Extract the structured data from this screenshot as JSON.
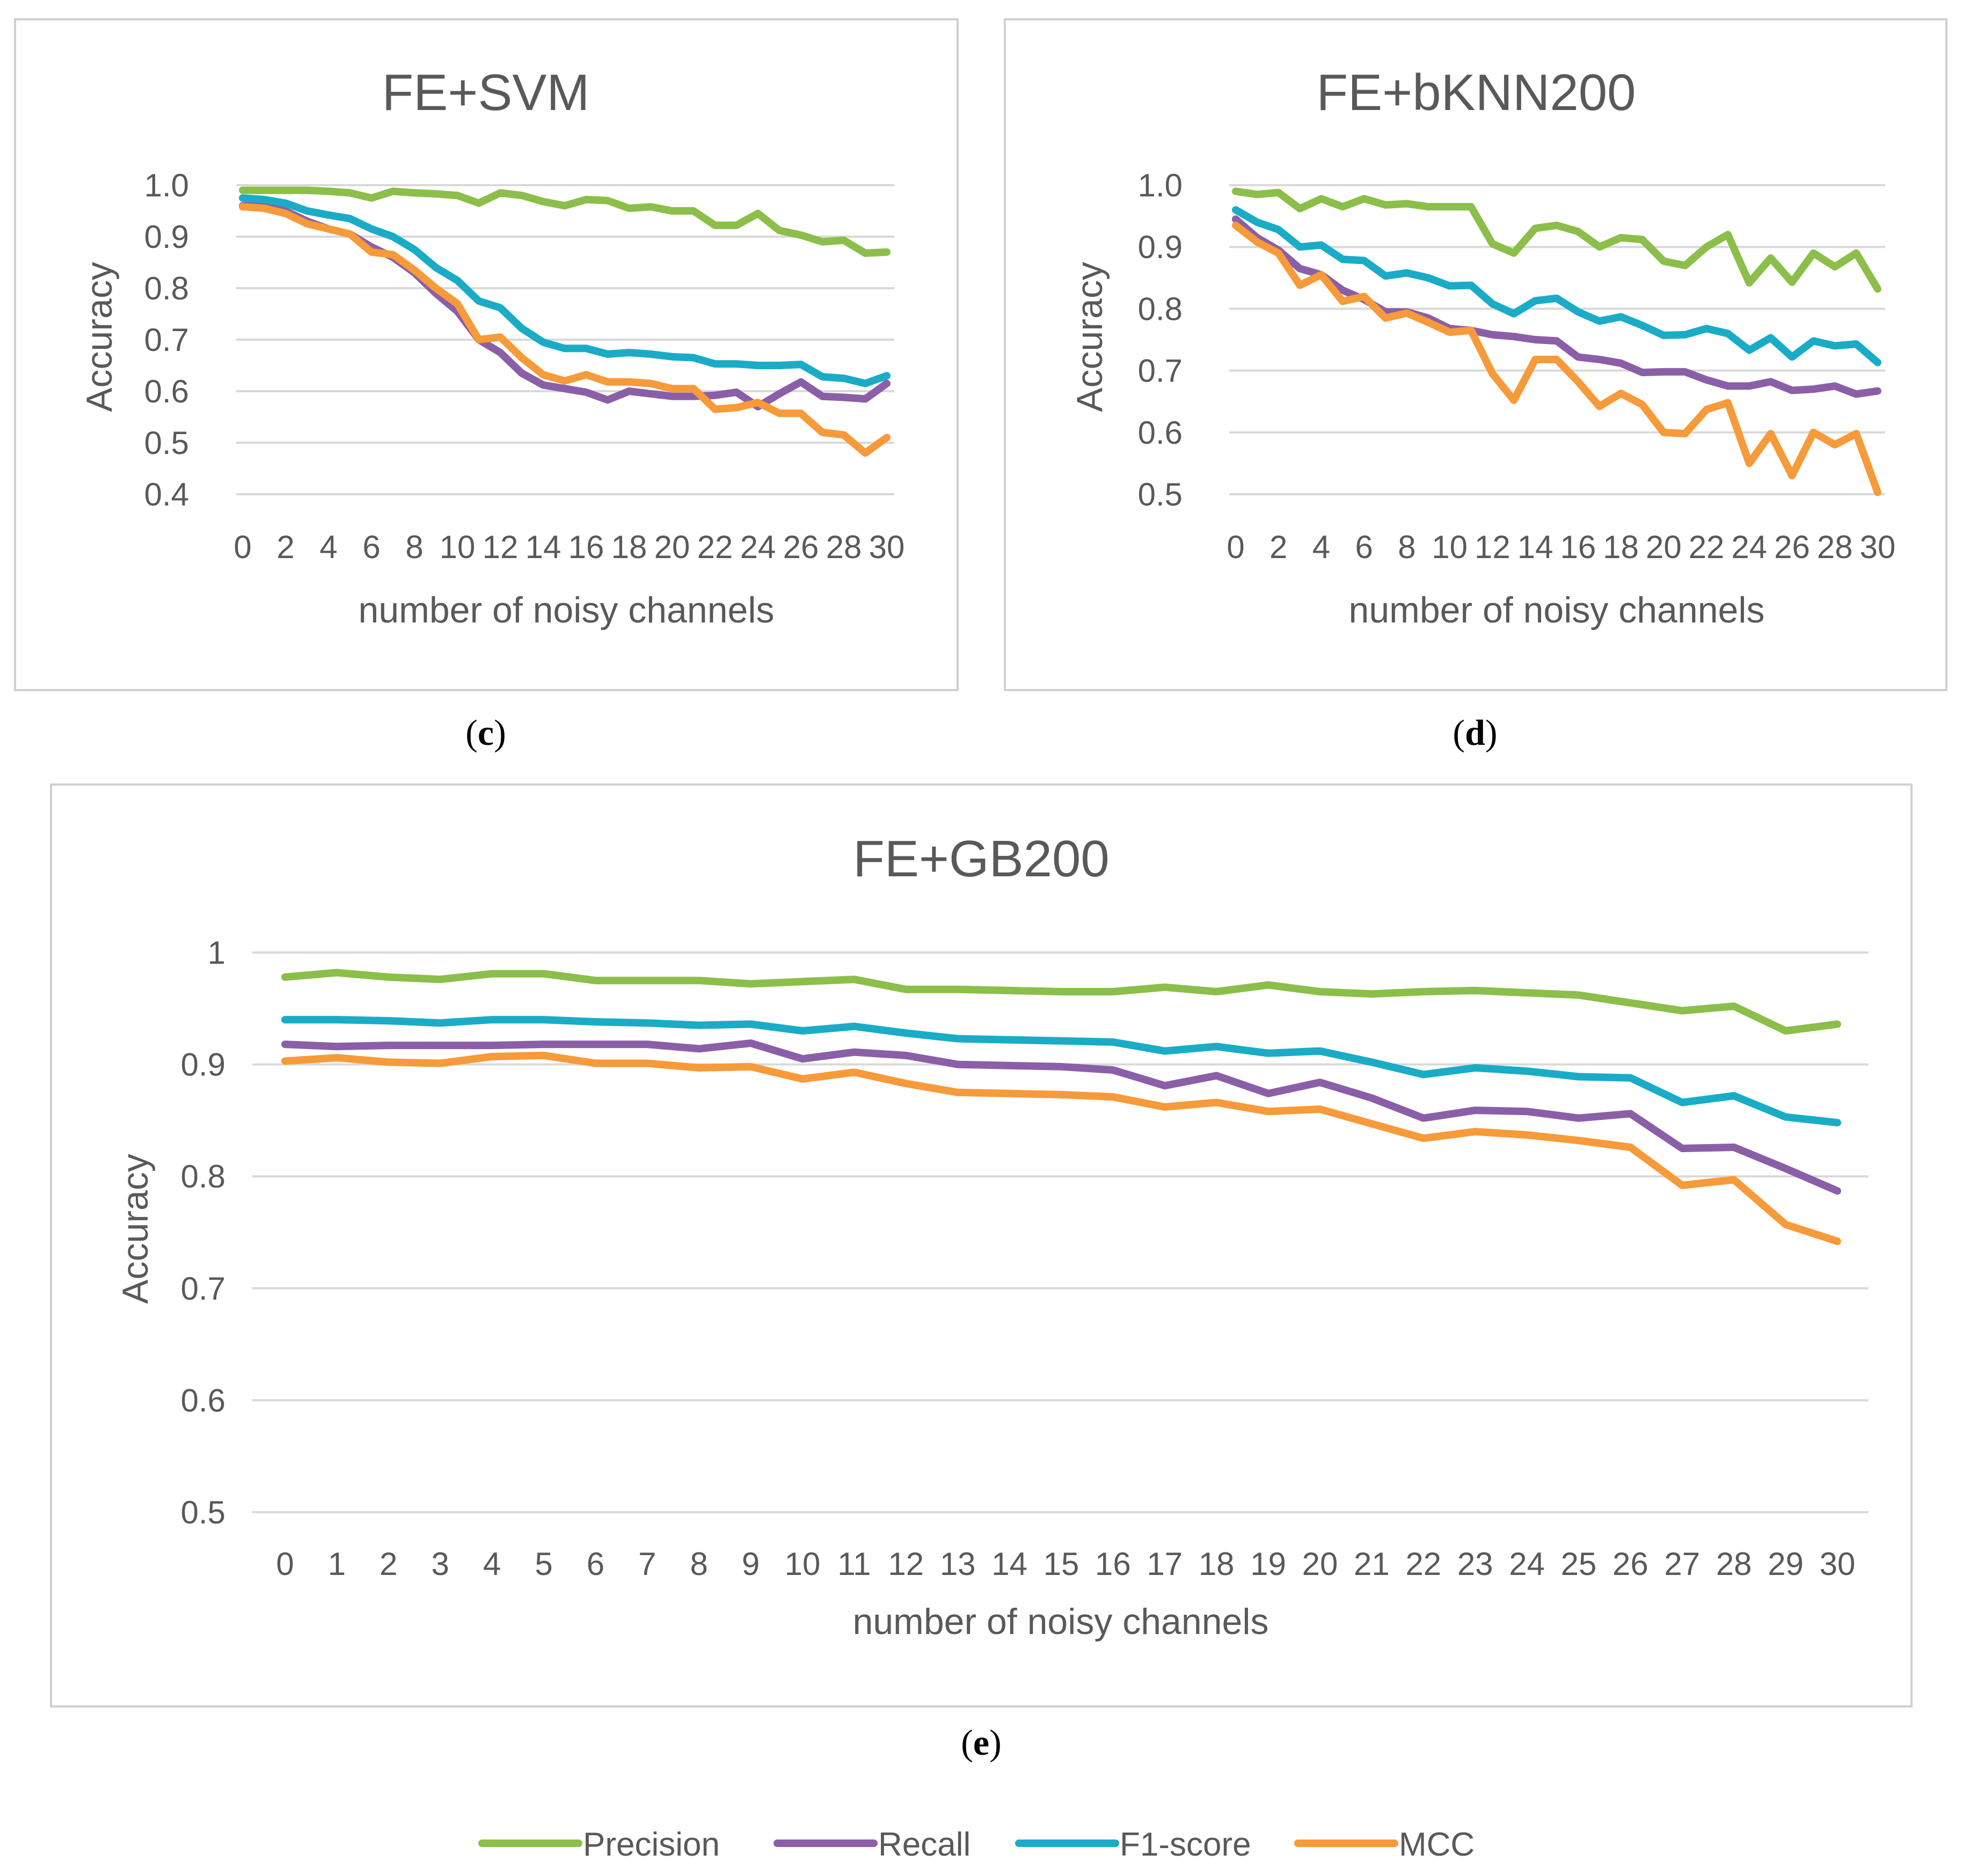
{
  "series_colors": {
    "Precision": "#8cbe4a",
    "Recall": "#8b5fa8",
    "F1-score": "#1aacc6",
    "MCC": "#f79a3a"
  },
  "legend": [
    "Precision",
    "Recall",
    "F1-score",
    "MCC"
  ],
  "chart_data": [
    {
      "type": "line",
      "caption_letter": "c",
      "title": "FE+SVM",
      "xlabel": "number of noisy channels",
      "ylabel": "Accuracy",
      "ylim": [
        0.4,
        1.0
      ],
      "yticks": [
        "0.4",
        "0.5",
        "0.6",
        "0.7",
        "0.8",
        "0.9",
        "1.0"
      ],
      "xtick_labels": [
        "0",
        "2",
        "4",
        "6",
        "8",
        "10",
        "12",
        "14",
        "16",
        "18",
        "20",
        "22",
        "24",
        "26",
        "28",
        "30"
      ],
      "x": [
        0,
        1,
        2,
        3,
        4,
        5,
        6,
        7,
        8,
        9,
        10,
        11,
        12,
        13,
        14,
        15,
        16,
        17,
        18,
        19,
        20,
        21,
        22,
        23,
        24,
        25,
        26,
        27,
        28,
        29,
        30
      ],
      "series": [
        {
          "name": "Precision",
          "values": [
            0.99,
            0.99,
            0.99,
            0.99,
            0.988,
            0.985,
            0.975,
            0.988,
            0.985,
            0.983,
            0.98,
            0.965,
            0.985,
            0.98,
            0.968,
            0.96,
            0.972,
            0.97,
            0.955,
            0.958,
            0.95,
            0.95,
            0.922,
            0.922,
            0.945,
            0.912,
            0.903,
            0.89,
            0.893,
            0.868,
            0.87
          ]
        },
        {
          "name": "Recall",
          "values": [
            0.96,
            0.96,
            0.95,
            0.93,
            0.915,
            0.905,
            0.88,
            0.86,
            0.83,
            0.79,
            0.755,
            0.7,
            0.675,
            0.635,
            0.612,
            0.605,
            0.598,
            0.583,
            0.6,
            0.595,
            0.59,
            0.59,
            0.592,
            0.598,
            0.57,
            0.595,
            0.618,
            0.59,
            0.588,
            0.585,
            0.615
          ]
        },
        {
          "name": "F1-score",
          "values": [
            0.975,
            0.972,
            0.965,
            0.95,
            0.942,
            0.935,
            0.915,
            0.9,
            0.875,
            0.84,
            0.815,
            0.775,
            0.762,
            0.722,
            0.695,
            0.683,
            0.683,
            0.672,
            0.675,
            0.672,
            0.667,
            0.665,
            0.653,
            0.653,
            0.65,
            0.65,
            0.652,
            0.628,
            0.625,
            0.615,
            0.63
          ]
        },
        {
          "name": "MCC",
          "values": [
            0.958,
            0.955,
            0.945,
            0.925,
            0.915,
            0.905,
            0.87,
            0.865,
            0.835,
            0.8,
            0.77,
            0.7,
            0.705,
            0.665,
            0.632,
            0.62,
            0.632,
            0.618,
            0.618,
            0.615,
            0.605,
            0.605,
            0.565,
            0.568,
            0.578,
            0.557,
            0.557,
            0.52,
            0.515,
            0.48,
            0.51
          ]
        }
      ]
    },
    {
      "type": "line",
      "caption_letter": "d",
      "title": "FE+bKNN200",
      "xlabel": "number of noisy channels",
      "ylabel": "Accuracy",
      "ylim": [
        0.5,
        1.0
      ],
      "yticks": [
        "0.5",
        "0.6",
        "0.7",
        "0.8",
        "0.9",
        "1.0"
      ],
      "xtick_labels": [
        "0",
        "2",
        "4",
        "6",
        "8",
        "10",
        "12",
        "14",
        "16",
        "18",
        "20",
        "22",
        "24",
        "26",
        "28",
        "30"
      ],
      "x": [
        0,
        1,
        2,
        3,
        4,
        5,
        6,
        7,
        8,
        9,
        10,
        11,
        12,
        13,
        14,
        15,
        16,
        17,
        18,
        19,
        20,
        21,
        22,
        23,
        24,
        25,
        26,
        27,
        28,
        29,
        30
      ],
      "series": [
        {
          "name": "Precision",
          "values": [
            0.99,
            0.985,
            0.988,
            0.962,
            0.978,
            0.965,
            0.978,
            0.968,
            0.97,
            0.965,
            0.965,
            0.965,
            0.905,
            0.89,
            0.93,
            0.935,
            0.925,
            0.9,
            0.915,
            0.912,
            0.877,
            0.87,
            0.9,
            0.92,
            0.842,
            0.882,
            0.843,
            0.89,
            0.868,
            0.89,
            0.832
          ]
        },
        {
          "name": "Recall",
          "values": [
            0.945,
            0.915,
            0.895,
            0.865,
            0.855,
            0.83,
            0.815,
            0.795,
            0.795,
            0.785,
            0.768,
            0.765,
            0.758,
            0.755,
            0.75,
            0.748,
            0.722,
            0.718,
            0.712,
            0.697,
            0.698,
            0.698,
            0.685,
            0.675,
            0.675,
            0.682,
            0.668,
            0.67,
            0.675,
            0.662,
            0.667
          ]
        },
        {
          "name": "F1-score",
          "values": [
            0.96,
            0.94,
            0.928,
            0.9,
            0.903,
            0.88,
            0.878,
            0.853,
            0.858,
            0.85,
            0.837,
            0.838,
            0.808,
            0.792,
            0.813,
            0.817,
            0.795,
            0.78,
            0.787,
            0.773,
            0.757,
            0.758,
            0.768,
            0.76,
            0.733,
            0.753,
            0.722,
            0.748,
            0.74,
            0.743,
            0.713
          ]
        },
        {
          "name": "MCC",
          "values": [
            0.935,
            0.908,
            0.89,
            0.838,
            0.855,
            0.812,
            0.82,
            0.785,
            0.793,
            0.778,
            0.762,
            0.765,
            0.695,
            0.652,
            0.718,
            0.718,
            0.682,
            0.642,
            0.663,
            0.645,
            0.6,
            0.598,
            0.637,
            0.648,
            0.55,
            0.598,
            0.53,
            0.6,
            0.58,
            0.598,
            0.503
          ]
        }
      ]
    },
    {
      "type": "line",
      "caption_letter": "e",
      "title": "FE+GB200",
      "xlabel": "number of noisy channels",
      "ylabel": "Accuracy",
      "ylim": [
        0.5,
        1.0
      ],
      "yticks": [
        "0.5",
        "0.6",
        "0.7",
        "0.8",
        "0.9",
        "1"
      ],
      "xtick_labels": [
        "0",
        "1",
        "2",
        "3",
        "4",
        "5",
        "6",
        "7",
        "8",
        "9",
        "10",
        "11",
        "12",
        "13",
        "14",
        "15",
        "16",
        "17",
        "18",
        "19",
        "20",
        "21",
        "22",
        "23",
        "24",
        "25",
        "26",
        "27",
        "28",
        "29",
        "30"
      ],
      "x": [
        0,
        1,
        2,
        3,
        4,
        5,
        6,
        7,
        8,
        9,
        10,
        11,
        12,
        13,
        14,
        15,
        16,
        17,
        18,
        19,
        20,
        21,
        22,
        23,
        24,
        25,
        26,
        27,
        28,
        29,
        30
      ],
      "series": [
        {
          "name": "Precision",
          "values": [
            0.978,
            0.982,
            0.978,
            0.976,
            0.981,
            0.981,
            0.975,
            0.975,
            0.975,
            0.972,
            0.974,
            0.976,
            0.967,
            0.967,
            0.966,
            0.965,
            0.965,
            0.969,
            0.965,
            0.971,
            0.965,
            0.963,
            0.965,
            0.966,
            0.964,
            0.962,
            0.955,
            0.948,
            0.952,
            0.93,
            0.936
          ]
        },
        {
          "name": "Recall",
          "values": [
            0.918,
            0.916,
            0.917,
            0.917,
            0.917,
            0.918,
            0.918,
            0.918,
            0.914,
            0.919,
            0.905,
            0.911,
            0.908,
            0.9,
            0.899,
            0.898,
            0.895,
            0.881,
            0.89,
            0.874,
            0.884,
            0.87,
            0.852,
            0.859,
            0.858,
            0.852,
            0.856,
            0.825,
            0.826,
            0.807,
            0.787
          ]
        },
        {
          "name": "F1-score",
          "values": [
            0.94,
            0.94,
            0.939,
            0.937,
            0.94,
            0.94,
            0.938,
            0.937,
            0.935,
            0.936,
            0.93,
            0.934,
            0.928,
            0.923,
            0.922,
            0.921,
            0.92,
            0.912,
            0.916,
            0.91,
            0.912,
            0.902,
            0.891,
            0.897,
            0.894,
            0.889,
            0.888,
            0.866,
            0.872,
            0.853,
            0.848
          ]
        },
        {
          "name": "MCC",
          "values": [
            0.903,
            0.906,
            0.902,
            0.901,
            0.907,
            0.908,
            0.901,
            0.901,
            0.897,
            0.898,
            0.887,
            0.893,
            0.883,
            0.875,
            0.874,
            0.873,
            0.871,
            0.862,
            0.866,
            0.858,
            0.86,
            0.847,
            0.834,
            0.84,
            0.837,
            0.832,
            0.826,
            0.792,
            0.797,
            0.757,
            0.742
          ]
        }
      ]
    }
  ]
}
